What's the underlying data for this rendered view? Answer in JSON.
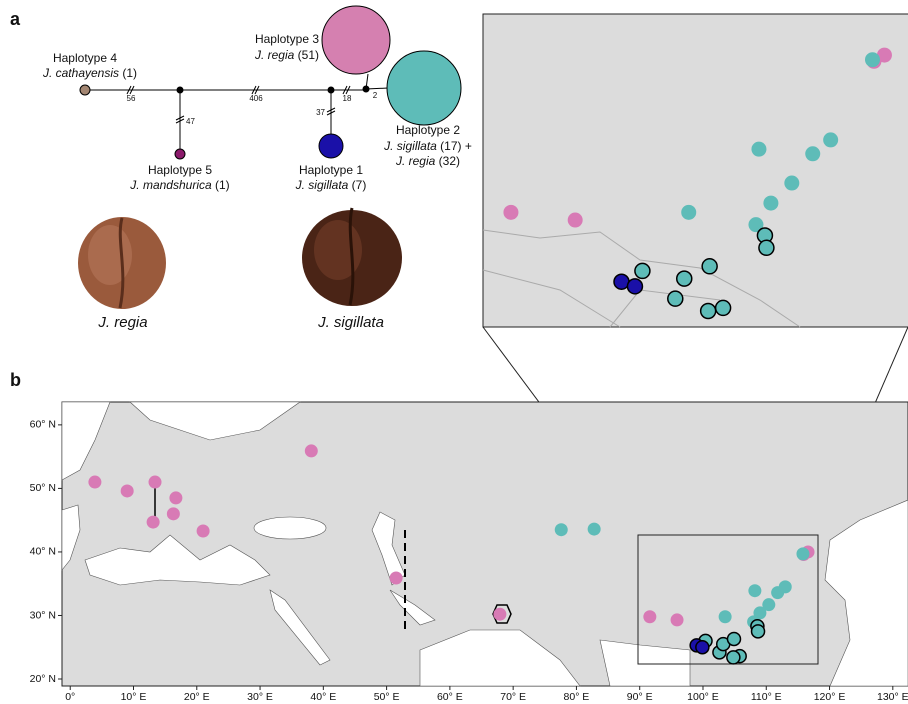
{
  "panel_a": {
    "label": "a",
    "nodes": [
      {
        "title": "Haplotype 4",
        "species": "J. cathayensis",
        "count": "(1)"
      },
      {
        "title": "Haplotype 5",
        "species": "J. mandshurica",
        "count": "(1)"
      },
      {
        "title": "Haplotype 1",
        "species": "J. sigillata",
        "count": "(7)"
      },
      {
        "title": "Haplotype 3",
        "species": "J. regia",
        "count": "(51)"
      },
      {
        "title": "Haplotype 2",
        "species": "J. sigillata",
        "count": "(17) +",
        "species2": "J. regia",
        "count2": "(32)"
      }
    ],
    "steps": [
      "56",
      "406",
      "47",
      "37",
      "18",
      "2"
    ],
    "fruits": [
      "J. regia",
      "J. sigillata"
    ]
  },
  "panel_b": {
    "label": "b",
    "xlim": [
      -1.3,
      132.4
    ],
    "ylim": [
      18.9,
      63.6
    ],
    "xticks": [
      {
        "value": 0,
        "label": "0°"
      },
      {
        "value": 10,
        "label": "10° E"
      },
      {
        "value": 20,
        "label": "20° E"
      },
      {
        "value": 30,
        "label": "30° E"
      },
      {
        "value": 40,
        "label": "40° E"
      },
      {
        "value": 50,
        "label": "50° E"
      },
      {
        "value": 60,
        "label": "60° E"
      },
      {
        "value": 70,
        "label": "70° E"
      },
      {
        "value": 80,
        "label": "80° E"
      },
      {
        "value": 90,
        "label": "90° E"
      },
      {
        "value": 100,
        "label": "100° E"
      },
      {
        "value": 110,
        "label": "110° E"
      },
      {
        "value": 120,
        "label": "120° E"
      },
      {
        "value": 130,
        "label": "130° E"
      }
    ],
    "yticks": [
      {
        "value": 20,
        "label": "20° N"
      },
      {
        "value": 30,
        "label": "30° N"
      },
      {
        "value": 40,
        "label": "40° N"
      },
      {
        "value": 50,
        "label": "50° N"
      },
      {
        "value": 60,
        "label": "60° N"
      }
    ],
    "points": [
      {
        "color": "#d87ab5",
        "outline": false,
        "lon": [
          3.9,
          9.0,
          13.4,
          16.7,
          16.3,
          13.1,
          21.0,
          38.1,
          51.5,
          67.9,
          91.6,
          95.9,
          116.6,
          115.9
        ],
        "lat": [
          51.0,
          49.6,
          51.0,
          48.5,
          46.0,
          44.7,
          43.3,
          55.9,
          35.9,
          30.2,
          29.8,
          29.3,
          40.0,
          39.6
        ]
      },
      {
        "color": "#5ebcb8",
        "outline": false,
        "lon": [
          77.6,
          82.8,
          108.2,
          113.0,
          111.8,
          110.4,
          109.0,
          108.0,
          103.5,
          115.8
        ],
        "lat": [
          43.5,
          43.6,
          33.9,
          34.5,
          33.6,
          31.7,
          30.4,
          29.0,
          29.8,
          39.7
        ]
      },
      {
        "color": "#5ebcb8",
        "outline": true,
        "lon": [
          100.4,
          102.6,
          103.2,
          104.9,
          105.8,
          104.8,
          108.6,
          108.7
        ],
        "lat": [
          26.0,
          24.2,
          25.5,
          26.3,
          23.6,
          23.4,
          28.3,
          27.5
        ]
      },
      {
        "color": "#1a10a8",
        "outline": true,
        "lon": [
          99.0,
          99.9
        ],
        "lat": [
          25.3,
          25.0
        ]
      }
    ]
  }
}
